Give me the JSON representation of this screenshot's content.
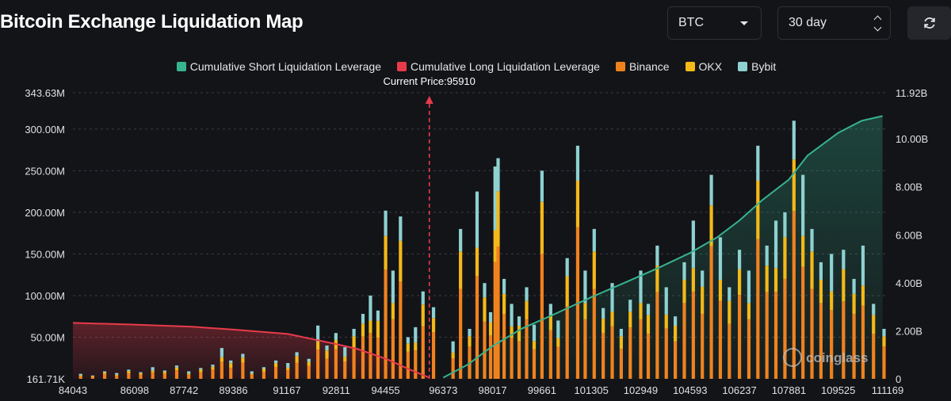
{
  "header": {
    "title": "Bitcoin Exchange Liquidation Map",
    "coin_select": "BTC",
    "range_select": "30 day",
    "refresh_icon": "refresh-icon"
  },
  "watermark": "coinglass",
  "colors": {
    "short_cum": "#36b38f",
    "long_cum": "#e83b4a",
    "binance": "#f0821e",
    "okx": "#f4b918",
    "bybit": "#8ed1d1",
    "background": "#131418"
  },
  "chart_data": {
    "type": "bar",
    "current_price_label": "Current Price:95910",
    "current_price": 95910,
    "legend": [
      {
        "name": "Cumulative Short Liquidation Leverage",
        "color": "#36b38f"
      },
      {
        "name": "Cumulative Long Liquidation Leverage",
        "color": "#e83b4a"
      },
      {
        "name": "Binance",
        "color": "#f0821e"
      },
      {
        "name": "OKX",
        "color": "#f4b918"
      },
      {
        "name": "Bybit",
        "color": "#8ed1d1"
      }
    ],
    "x_ticks": [
      "84043",
      "86098",
      "87742",
      "89386",
      "91167",
      "92811",
      "94455",
      "96373",
      "98017",
      "99661",
      "101305",
      "102949",
      "104593",
      "106237",
      "107881",
      "109525",
      "111169"
    ],
    "y_left_ticks": [
      "161.71K",
      "50.00M",
      "100.00M",
      "150.00M",
      "200.00M",
      "250.00M",
      "300.00M",
      "343.63M"
    ],
    "y_right_ticks": [
      "0",
      "2.00B",
      "4.00B",
      "6.00B",
      "8.00B",
      "10.00B",
      "11.92B"
    ],
    "y_left_range_millions": [
      0.16171,
      343.63
    ],
    "y_right_range_billions": [
      0,
      11.92
    ],
    "x_range": [
      84043,
      111169
    ],
    "bars_total_millions": [
      {
        "x": 84300,
        "v": 6
      },
      {
        "x": 84700,
        "v": 4
      },
      {
        "x": 85100,
        "v": 9
      },
      {
        "x": 85500,
        "v": 7
      },
      {
        "x": 85900,
        "v": 11
      },
      {
        "x": 86300,
        "v": 8
      },
      {
        "x": 86700,
        "v": 14
      },
      {
        "x": 87100,
        "v": 10
      },
      {
        "x": 87500,
        "v": 16
      },
      {
        "x": 87900,
        "v": 9
      },
      {
        "x": 88300,
        "v": 13
      },
      {
        "x": 88700,
        "v": 17
      },
      {
        "x": 89000,
        "v": 37
      },
      {
        "x": 89300,
        "v": 22
      },
      {
        "x": 89700,
        "v": 30
      },
      {
        "x": 90000,
        "v": 9
      },
      {
        "x": 90400,
        "v": 14
      },
      {
        "x": 90800,
        "v": 22
      },
      {
        "x": 91200,
        "v": 19
      },
      {
        "x": 91500,
        "v": 32
      },
      {
        "x": 91900,
        "v": 24
      },
      {
        "x": 92200,
        "v": 64
      },
      {
        "x": 92500,
        "v": 40
      },
      {
        "x": 92800,
        "v": 55
      },
      {
        "x": 93100,
        "v": 38
      },
      {
        "x": 93400,
        "v": 60
      },
      {
        "x": 93700,
        "v": 78
      },
      {
        "x": 93950,
        "v": 100
      },
      {
        "x": 94200,
        "v": 82
      },
      {
        "x": 94455,
        "v": 202
      },
      {
        "x": 94700,
        "v": 130
      },
      {
        "x": 94950,
        "v": 195
      },
      {
        "x": 95200,
        "v": 50
      },
      {
        "x": 95450,
        "v": 62
      },
      {
        "x": 95700,
        "v": 105
      },
      {
        "x": 96050,
        "v": 86
      },
      {
        "x": 96700,
        "v": 45
      },
      {
        "x": 96950,
        "v": 180
      },
      {
        "x": 97250,
        "v": 60
      },
      {
        "x": 97500,
        "v": 225
      },
      {
        "x": 97750,
        "v": 115
      },
      {
        "x": 97950,
        "v": 80
      },
      {
        "x": 98100,
        "v": 255
      },
      {
        "x": 98200,
        "v": 265
      },
      {
        "x": 98400,
        "v": 120
      },
      {
        "x": 98650,
        "v": 90
      },
      {
        "x": 98900,
        "v": 75
      },
      {
        "x": 99150,
        "v": 110
      },
      {
        "x": 99400,
        "v": 65
      },
      {
        "x": 99661,
        "v": 250
      },
      {
        "x": 99950,
        "v": 90
      },
      {
        "x": 100200,
        "v": 70
      },
      {
        "x": 100500,
        "v": 145
      },
      {
        "x": 100850,
        "v": 280
      },
      {
        "x": 101100,
        "v": 130
      },
      {
        "x": 101400,
        "v": 180
      },
      {
        "x": 101700,
        "v": 85
      },
      {
        "x": 102000,
        "v": 115
      },
      {
        "x": 102300,
        "v": 60
      },
      {
        "x": 102600,
        "v": 95
      },
      {
        "x": 102949,
        "v": 130
      },
      {
        "x": 103200,
        "v": 90
      },
      {
        "x": 103500,
        "v": 160
      },
      {
        "x": 103800,
        "v": 110
      },
      {
        "x": 104100,
        "v": 75
      },
      {
        "x": 104400,
        "v": 140
      },
      {
        "x": 104700,
        "v": 190
      },
      {
        "x": 105000,
        "v": 130
      },
      {
        "x": 105300,
        "v": 245
      },
      {
        "x": 105600,
        "v": 170
      },
      {
        "x": 105900,
        "v": 110
      },
      {
        "x": 106237,
        "v": 155
      },
      {
        "x": 106550,
        "v": 130
      },
      {
        "x": 106850,
        "v": 280
      },
      {
        "x": 107150,
        "v": 160
      },
      {
        "x": 107450,
        "v": 190
      },
      {
        "x": 107750,
        "v": 200
      },
      {
        "x": 108050,
        "v": 310
      },
      {
        "x": 108350,
        "v": 245
      },
      {
        "x": 108650,
        "v": 180
      },
      {
        "x": 108950,
        "v": 140
      },
      {
        "x": 109300,
        "v": 150
      },
      {
        "x": 109700,
        "v": 155
      },
      {
        "x": 110050,
        "v": 120
      },
      {
        "x": 110350,
        "v": 160
      },
      {
        "x": 110700,
        "v": 90
      },
      {
        "x": 111050,
        "v": 60
      }
    ],
    "cumulative_long_billions": [
      {
        "x": 84043,
        "v": 2.33
      },
      {
        "x": 86000,
        "v": 2.26
      },
      {
        "x": 88000,
        "v": 2.17
      },
      {
        "x": 89400,
        "v": 2.05
      },
      {
        "x": 91200,
        "v": 1.87
      },
      {
        "x": 92800,
        "v": 1.45
      },
      {
        "x": 93500,
        "v": 1.25
      },
      {
        "x": 94500,
        "v": 0.82
      },
      {
        "x": 95200,
        "v": 0.42
      },
      {
        "x": 95910,
        "v": 0.05
      }
    ],
    "cumulative_short_billions": [
      {
        "x": 96373,
        "v": 0.05
      },
      {
        "x": 97200,
        "v": 0.6
      },
      {
        "x": 98000,
        "v": 1.35
      },
      {
        "x": 99000,
        "v": 2.1
      },
      {
        "x": 100000,
        "v": 2.65
      },
      {
        "x": 101300,
        "v": 3.4
      },
      {
        "x": 102500,
        "v": 4.05
      },
      {
        "x": 103500,
        "v": 4.6
      },
      {
        "x": 104600,
        "v": 5.25
      },
      {
        "x": 105500,
        "v": 5.9
      },
      {
        "x": 106237,
        "v": 6.6
      },
      {
        "x": 107000,
        "v": 7.45
      },
      {
        "x": 107881,
        "v": 8.3
      },
      {
        "x": 108500,
        "v": 9.3
      },
      {
        "x": 109525,
        "v": 10.25
      },
      {
        "x": 110300,
        "v": 10.75
      },
      {
        "x": 111000,
        "v": 10.95
      }
    ]
  }
}
